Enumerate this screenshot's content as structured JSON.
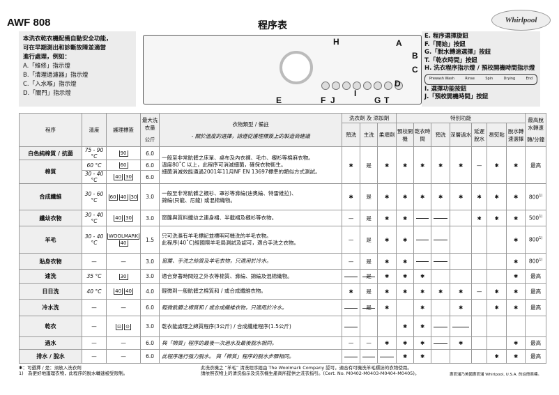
{
  "model": "AWF 808",
  "title": "程序表",
  "logo": "Whirlpool",
  "intro": [
    "本洗衣乾衣機配備自動安全功能，",
    "可在早期測出和診斷故障並適當",
    "進行處理，例如："
  ],
  "left_items": [
    "A.「維修」指示燈",
    "B.「清理過濾器」指示燈",
    "C.「入水喉」指示燈",
    "D.「關門」指示燈"
  ],
  "right_items": [
    "E. 程序選擇旋鈕",
    "F.「開始」按鈕",
    "G.「脫水轉速選擇」按鈕",
    "T.「乾衣時間」按鈕",
    "H. 洗衣程序指示燈 / 預校開機時間指示燈"
  ],
  "steps": [
    "Prewash Wash",
    "Rinse",
    "Spin",
    "Drying",
    "End"
  ],
  "right_items2": [
    "I. 選擇功能按鈕",
    "J.「預校開機時間」按鈕"
  ],
  "panel_labels": [
    "H",
    "A",
    "B",
    "C",
    "D",
    "E",
    "F",
    "J",
    "I",
    "G",
    "T"
  ],
  "header": {
    "program": "程序",
    "temp": "溫度",
    "care": "護理標簽",
    "max": "最大洗衣量",
    "kg": "公斤",
    "desc": "衣物類型 / 備註",
    "desc_note": "- 關於溫度的選擇，請遵從護理標簽上的製造商建議",
    "detergent": "洗衣劑 及 添加劑",
    "special": "特別功能",
    "cols": [
      "預洗",
      "主洗",
      "柔順劑",
      "預校開機",
      "乾衣時間",
      "預洗",
      "深層過水",
      "延遲脫水",
      "易熨貼",
      "脫水轉速選擇"
    ],
    "maxspin": "最高脫水轉速",
    "rpm": "轉/分鐘"
  },
  "rows": [
    {
      "program": [
        "白色純棉質 / 抗菌",
        "棉質"
      ],
      "sub": [
        {
          "temp": "75 - 90 °C",
          "care": [
            "90"
          ],
          "max": "6.0"
        },
        {
          "temp": "60 °C",
          "care": [
            "60"
          ],
          "max": "6.0"
        },
        {
          "temp": "30 - 40 °C",
          "care": [
            "40",
            "30"
          ],
          "max": "6.0"
        }
      ],
      "desc": [
        "一般至非常骯髒之床單、桌布及內衣褲、毛巾、襯衫等棉麻衣物。",
        "溫度80˚C 以上，此程序可消滅細菌，確保衣物衛生。",
        "細菌消滅效能通過2001年11月NF EN 13697標準的類似方式測試。"
      ],
      "marks": [
        "✱",
        "是",
        "✱",
        "✱",
        "✱",
        "✱",
        "✱",
        "—",
        "✱",
        "✱"
      ],
      "spin": "最高"
    },
    {
      "program": "合成纖維",
      "temp": "30 - 60 °C",
      "care": [
        "60",
        "40",
        "30"
      ],
      "max": "3.0",
      "desc": [
        "一般至非常骯髒之襯衫、罩衫等滌綸(迪奧綸、特雷維拉)、",
        "錦綸(貝龍、尼龍) 或混棉織物。"
      ],
      "marks": [
        "✱",
        "是",
        "✱",
        "✱",
        "✱",
        "✱",
        "✱",
        "✱",
        "✱",
        "✱"
      ],
      "spin": "800",
      "fn": "1)"
    },
    {
      "program": "纖幼衣物",
      "temp": "30 - 40 °C",
      "care": [
        "40",
        "30"
      ],
      "max": "3.0",
      "desc": [
        "窗簾與質料纖幼之連身裙、半截裙及襯衫等衣物。"
      ],
      "marks": [
        "—",
        "是",
        "✱",
        "✱",
        "~",
        "~",
        "",
        "✱",
        "✱",
        "✱"
      ],
      "spin": "500",
      "fn": "1)"
    },
    {
      "program": "羊毛",
      "temp": "30 - 40 °C",
      "care": [
        "WOOLMARK",
        "40"
      ],
      "max": "1.5",
      "desc": [
        "只可洗滌有羊毛標記並標明可機洗的羊毛衣物。",
        "此程序(40˚C)經國際羊毛局測試及認可，適合手洗之衣物。"
      ],
      "marks": [
        "—",
        "是",
        "✱",
        "✱",
        "~",
        "~",
        "",
        "",
        "",
        "✱"
      ],
      "spin": "800",
      "fn": "1)"
    },
    {
      "program": "貼身衣物",
      "temp": "—",
      "care": [
        "—"
      ],
      "max": "3.0",
      "desc": [
        "窗簾、手洗之絲質及羊毛衣物，只適用於冷水。"
      ],
      "italic": true,
      "marks": [
        "—",
        "是",
        "✱",
        "✱",
        "~",
        "~",
        "",
        "",
        "",
        "✱"
      ],
      "spin": "800",
      "fn": "1)"
    },
    {
      "program": "速洗",
      "temp": "35 °C",
      "care": [
        "30"
      ],
      "max": "3.0",
      "desc": [
        "適合穿著時間短之外衣等棉質、滌綸、錦綸及混棉織物。"
      ],
      "marks": [
        "~",
        "~是",
        "✱",
        "✱",
        "✱",
        "",
        "",
        "",
        "",
        "✱"
      ],
      "spin": "最高"
    },
    {
      "program": "日日洗",
      "temp": "40 °C",
      "care": [
        "40",
        "40"
      ],
      "max": "4.0",
      "desc": [
        "輕微到一般骯髒之棉質和 / 或合成纖維衣物。"
      ],
      "marks": [
        "✱",
        "是",
        "✱",
        "✱",
        "✱",
        "✱",
        "✱",
        "—",
        "✱",
        "✱"
      ],
      "spin": "最高"
    },
    {
      "program": "冷水洗",
      "temp": "—",
      "care": [
        "—"
      ],
      "max": "6.0",
      "desc": [
        "輕微骯髒之棉質和 / 或合成纖維衣物，只適用於冷水。"
      ],
      "italic": true,
      "marks": [
        "~",
        "~是",
        "✱",
        "",
        "✱",
        "",
        "✱",
        "",
        "✱",
        "✱"
      ],
      "spin": "最高"
    },
    {
      "program": "乾衣",
      "temp": "—",
      "care": [
        "⊡",
        "⊙"
      ],
      "max": "3.0",
      "desc": [
        "乾衣能處理之綿質程序(3公斤) / 合成纖維程序(1.5公斤)"
      ],
      "marks": [
        "~",
        "",
        "",
        "✱",
        "✱",
        "~",
        "~",
        "",
        "",
        ""
      ],
      "spin": ""
    },
    {
      "program": "過水",
      "temp": "—",
      "care": [
        "—"
      ],
      "max": "6.0",
      "desc": [
        "與「棉質」程序的最後一次過水及最後脫水相同。"
      ],
      "italic": true,
      "marks": [
        "—",
        "—",
        "✱",
        "✱",
        "✱",
        "~",
        "✱",
        "",
        "",
        "✱"
      ],
      "spin": "最高"
    },
    {
      "program": "排水 / 脫水",
      "temp": "—",
      "care": [
        "—"
      ],
      "max": "6.0",
      "desc": [
        "此程序進行強力脫水。 與「棉質」程序的脫水步驟相同。"
      ],
      "italic": true,
      "marks": [
        "~",
        "~",
        "~",
        "✱",
        "✱",
        "",
        "",
        "",
        "✱",
        "✱"
      ],
      "spin": "最高"
    }
  ],
  "footnotes": [
    "✱：可選擇 / 是：須放入洗衣劑",
    "1)　為更好地護理衣物，此程序的脫水轉速被受限制。"
  ],
  "footmid": [
    "此洗衣機之 “羊毛” 清洗程序經由 The Woolmark Company 認可，適合有可機洗羊毛標誌的衣物使用。",
    "請依照衣物上的清洗指示及洗衣機生產商所提供之洗衣指引。(Cert. No. M0402-M0403-M0404-M0405)。"
  ],
  "footright": "惠而浦乃美國惠而浦 Whirlpool, U.S.A. 的註冊商標。"
}
